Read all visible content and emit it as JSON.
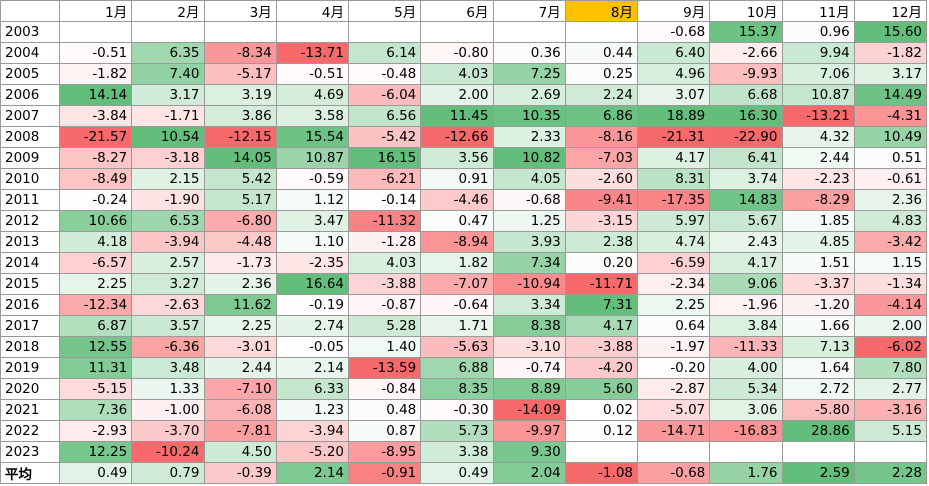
{
  "table": {
    "header": [
      "1月",
      "2月",
      "3月",
      "4月",
      "5月",
      "6月",
      "7月",
      "8月",
      "9月",
      "10月",
      "11月",
      "12月"
    ],
    "rows": [
      [
        "2003",
        null,
        null,
        null,
        null,
        null,
        null,
        null,
        null,
        "-0.68",
        "15.37",
        "0.96",
        "15.60"
      ],
      [
        "2004",
        "-0.51",
        "6.35",
        "-8.34",
        "-13.71",
        "6.14",
        "-0.80",
        "0.36",
        "0.44",
        "6.40",
        "-2.66",
        "9.94",
        "-1.82"
      ],
      [
        "2005",
        "-1.82",
        "7.40",
        "-5.17",
        "-0.51",
        "-0.48",
        "4.03",
        "7.25",
        "0.25",
        "4.96",
        "-9.93",
        "7.06",
        "3.17"
      ],
      [
        "2006",
        "14.14",
        "3.17",
        "3.19",
        "4.69",
        "-6.04",
        "2.00",
        "2.69",
        "2.24",
        "3.07",
        "6.68",
        "10.87",
        "14.49"
      ],
      [
        "2007",
        "-3.84",
        "-1.71",
        "3.86",
        "3.58",
        "6.56",
        "11.45",
        "10.35",
        "6.86",
        "18.89",
        "16.30",
        "-13.21",
        "-4.31"
      ],
      [
        "2008",
        "-21.57",
        "10.54",
        "-12.15",
        "15.54",
        "-5.42",
        "-12.66",
        "2.33",
        "-8.16",
        "-21.31",
        "-22.90",
        "4.32",
        "10.49"
      ],
      [
        "2009",
        "-8.27",
        "-3.18",
        "14.05",
        "10.87",
        "16.15",
        "3.56",
        "10.82",
        "-7.03",
        "4.17",
        "6.41",
        "2.44",
        "0.51"
      ],
      [
        "2010",
        "-8.49",
        "2.15",
        "5.42",
        "-0.59",
        "-6.21",
        "0.91",
        "4.05",
        "-2.60",
        "8.31",
        "3.74",
        "-2.23",
        "-0.61"
      ],
      [
        "2011",
        "-0.24",
        "-1.90",
        "5.17",
        "1.12",
        "-0.14",
        "-4.46",
        "-0.68",
        "-9.41",
        "-17.35",
        "14.83",
        "-8.29",
        "2.36"
      ],
      [
        "2012",
        "10.66",
        "6.53",
        "-6.80",
        "3.47",
        "-11.32",
        "0.47",
        "1.25",
        "-3.15",
        "5.97",
        "5.67",
        "1.85",
        "4.83"
      ],
      [
        "2013",
        "4.18",
        "-3.94",
        "-4.48",
        "1.10",
        "-1.28",
        "-8.94",
        "3.93",
        "2.38",
        "4.74",
        "2.43",
        "4.85",
        "-3.42"
      ],
      [
        "2014",
        "-6.57",
        "2.57",
        "-1.73",
        "-2.35",
        "4.03",
        "1.82",
        "7.34",
        "0.20",
        "-6.59",
        "4.17",
        "1.51",
        "1.15"
      ],
      [
        "2015",
        "2.25",
        "3.27",
        "2.36",
        "16.64",
        "-3.88",
        "-7.07",
        "-10.94",
        "-11.71",
        "-2.34",
        "9.06",
        "-3.37",
        "-1.34"
      ],
      [
        "2016",
        "-12.34",
        "-2.63",
        "11.62",
        "-0.19",
        "-0.87",
        "-0.64",
        "3.34",
        "7.31",
        "2.25",
        "-1.96",
        "-1.20",
        "-4.14"
      ],
      [
        "2017",
        "6.87",
        "3.57",
        "2.25",
        "2.74",
        "5.28",
        "1.71",
        "8.38",
        "4.17",
        "0.64",
        "3.84",
        "1.66",
        "2.00"
      ],
      [
        "2018",
        "12.55",
        "-6.36",
        "-3.01",
        "-0.05",
        "1.40",
        "-5.63",
        "-3.10",
        "-3.88",
        "-1.97",
        "-11.33",
        "7.13",
        "-6.02"
      ],
      [
        "2019",
        "11.31",
        "3.48",
        "2.44",
        "2.14",
        "-13.59",
        "6.88",
        "-0.74",
        "-4.20",
        "-0.20",
        "4.00",
        "1.64",
        "7.80"
      ],
      [
        "2020",
        "-5.15",
        "1.33",
        "-7.10",
        "6.33",
        "-0.84",
        "8.35",
        "8.89",
        "5.60",
        "-2.87",
        "5.34",
        "2.72",
        "2.77"
      ],
      [
        "2021",
        "7.36",
        "-1.00",
        "-6.08",
        "1.23",
        "0.48",
        "-0.30",
        "-14.09",
        "0.02",
        "-5.07",
        "3.06",
        "-5.80",
        "-3.16"
      ],
      [
        "2022",
        "-2.93",
        "-3.70",
        "-7.81",
        "-3.94",
        "0.87",
        "5.73",
        "-9.97",
        "0.12",
        "-14.71",
        "-16.83",
        "28.86",
        "5.15"
      ],
      [
        "2023",
        "12.25",
        "-10.24",
        "4.50",
        "-5.20",
        "-8.95",
        "3.38",
        "9.30",
        null,
        null,
        null,
        null,
        null
      ]
    ],
    "average": [
      "平均",
      "0.49",
      "0.79",
      "-0.39",
      "2.14",
      "-0.91",
      "0.49",
      "2.04",
      "-1.08",
      "-0.68",
      "1.76",
      "2.59",
      "2.28"
    ]
  }
}
